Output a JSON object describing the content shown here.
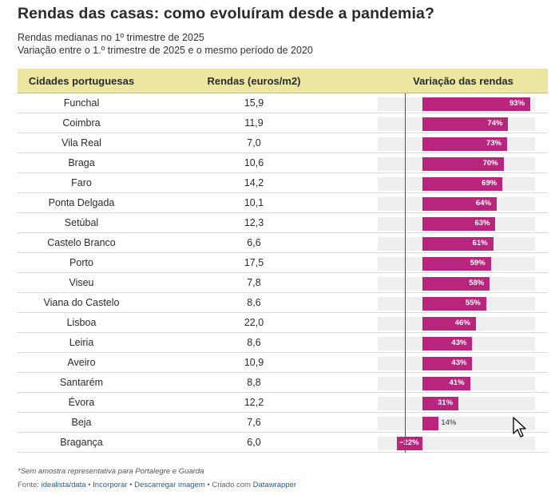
{
  "title": "Rendas das casas: como evoluíram desde a pandemia?",
  "subtitle": {
    "line1": "Rendas medianas no 1º trimestre de 2025",
    "line2": "Variação entre o 1.º trimestre de 2025 e o mesmo período de 2020"
  },
  "columns": {
    "city": "Cidades portuguesas",
    "rent": "Rendas (euros/m2)",
    "variation": "Variação das rendas"
  },
  "rows": [
    {
      "city": "Funchal",
      "rent": "15,9",
      "variation_label": "93%"
    },
    {
      "city": "Coimbra",
      "rent": "11,9",
      "variation_label": "74%"
    },
    {
      "city": "Vila Real",
      "rent": "7,0",
      "variation_label": "73%"
    },
    {
      "city": "Braga",
      "rent": "10,6",
      "variation_label": "70%"
    },
    {
      "city": "Faro",
      "rent": "14,2",
      "variation_label": "69%"
    },
    {
      "city": "Ponta Delgada",
      "rent": "10,1",
      "variation_label": "64%"
    },
    {
      "city": "Setúbal",
      "rent": "12,3",
      "variation_label": "63%"
    },
    {
      "city": "Castelo Branco",
      "rent": "6,6",
      "variation_label": "61%"
    },
    {
      "city": "Porto",
      "rent": "17,5",
      "variation_label": "59%"
    },
    {
      "city": "Viseu",
      "rent": "7,8",
      "variation_label": "58%"
    },
    {
      "city": "Viana do Castelo",
      "rent": "8,6",
      "variation_label": "55%"
    },
    {
      "city": "Lisboa",
      "rent": "22,0",
      "variation_label": "46%"
    },
    {
      "city": "Leiria",
      "rent": "8,6",
      "variation_label": "43%"
    },
    {
      "city": "Aveiro",
      "rent": "10,9",
      "variation_label": "43%"
    },
    {
      "city": "Santarém",
      "rent": "8,8",
      "variation_label": "41%"
    },
    {
      "city": "Évora",
      "rent": "12,2",
      "variation_label": "31%"
    },
    {
      "city": "Beja",
      "rent": "7,6",
      "variation_label": "14%"
    },
    {
      "city": "Bragança",
      "rent": "6,0",
      "variation_label": "−22%"
    }
  ],
  "footnote": "*Sem amostra representativa para Portalegre e Guarda",
  "source": {
    "prefix": "Fonte:",
    "source_link": "idealista/data",
    "sep1": "•",
    "embed": "Incorporar",
    "sep2": "•",
    "download": "Descarregar imagem",
    "sep3": "• Criado com",
    "tool": "Datawrapper"
  },
  "colors": {
    "bar": "#b9247c",
    "header": "#ebe7a2",
    "track": "#eeeeee",
    "link": "#1a5fa8"
  },
  "chart_data": {
    "type": "bar",
    "orientation": "horizontal",
    "categories": [
      "Funchal",
      "Coimbra",
      "Vila Real",
      "Braga",
      "Faro",
      "Ponta Delgada",
      "Setúbal",
      "Castelo Branco",
      "Porto",
      "Viseu",
      "Viana do Castelo",
      "Lisboa",
      "Leiria",
      "Aveiro",
      "Santarém",
      "Évora",
      "Beja",
      "Bragança"
    ],
    "series": [
      {
        "name": "Rendas (euros/m2)",
        "values": [
          15.9,
          11.9,
          7.0,
          10.6,
          14.2,
          10.1,
          12.3,
          6.6,
          17.5,
          7.8,
          8.6,
          22.0,
          8.6,
          10.9,
          8.8,
          12.2,
          7.6,
          6.0
        ]
      },
      {
        "name": "Variação das rendas",
        "values": [
          93,
          74,
          73,
          70,
          69,
          64,
          63,
          61,
          59,
          58,
          55,
          46,
          43,
          43,
          41,
          31,
          14,
          -22
        ]
      }
    ],
    "xlim": [
      -22,
      93
    ],
    "unit": "%"
  }
}
